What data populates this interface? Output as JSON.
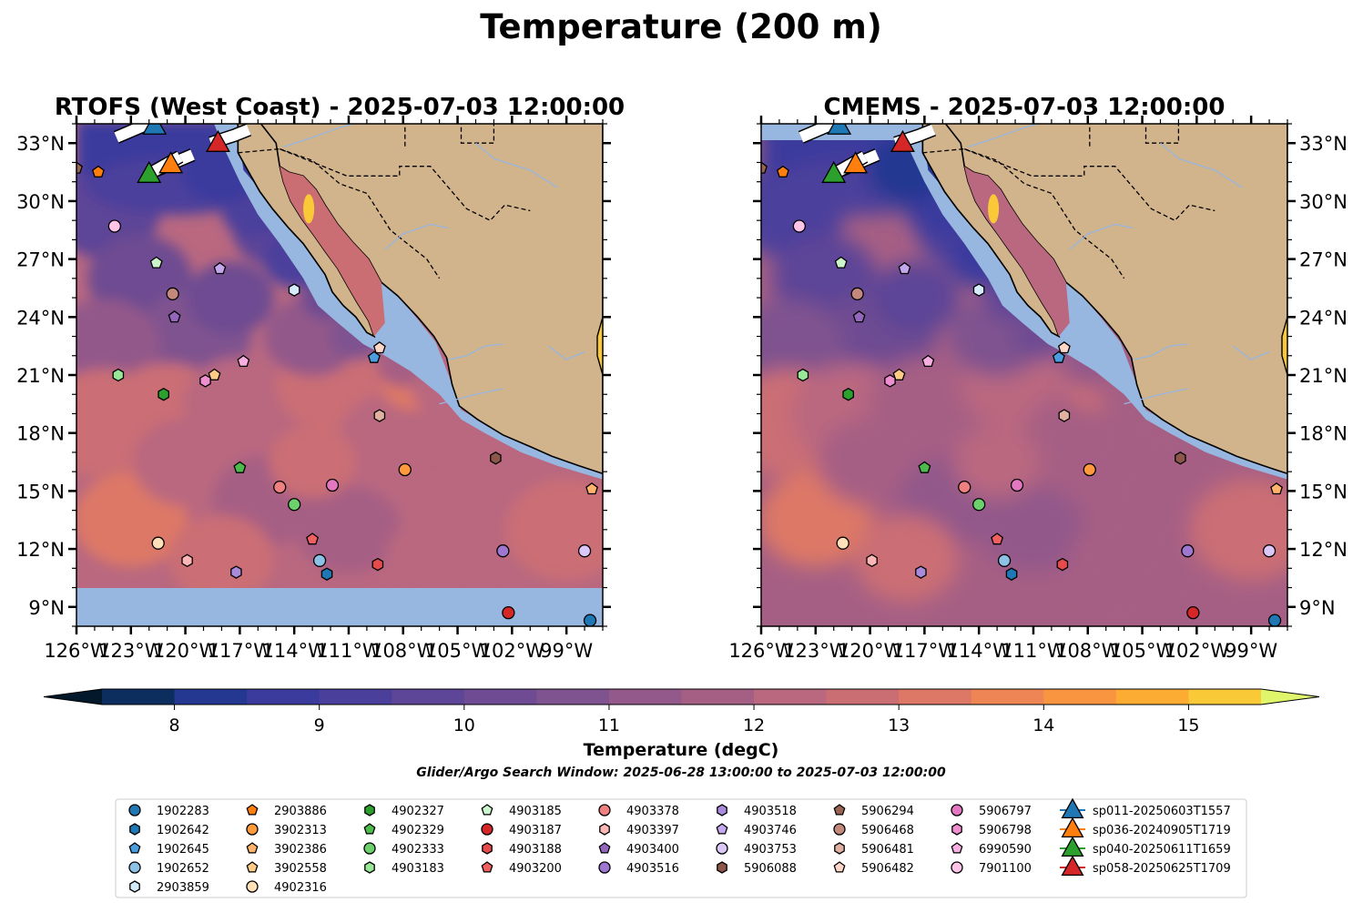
{
  "figure": {
    "suptitle": "Temperature (200 m)",
    "search_window": "Glider/Argo Search Window: 2025-06-28 13:00:00 to 2025-07-03 12:00:00"
  },
  "colors": {
    "land": "#d2b48c",
    "nodata_ocean": "#97b6e0",
    "river": "#97b6e0",
    "colormap": [
      "#03192b",
      "#0c2e5e",
      "#243891",
      "#3b3b9e",
      "#4b3f9c",
      "#5d4597",
      "#6e4b92",
      "#7f538f",
      "#93598a",
      "#a65f84",
      "#b96880",
      "#cb6e74",
      "#dd7866",
      "#ee8554",
      "#f99540",
      "#fcac32",
      "#f9c937",
      "#eee455",
      "#dff56b"
    ]
  },
  "chart_data": [
    {
      "type": "heatmap",
      "title": "RTOFS (West Coast) - 2025-07-03 12:00:00",
      "model": "RTOFS",
      "xlim": [
        -126,
        -97
      ],
      "ylim": [
        8,
        34
      ],
      "x_tick_labels": [
        "126°W",
        "123°W",
        "120°W",
        "117°W",
        "114°W",
        "111°W",
        "108°W",
        "105°W",
        "102°W",
        "99°W"
      ],
      "x_ticks": [
        -126,
        -123,
        -120,
        -117,
        -114,
        -111,
        -108,
        -105,
        -102,
        -99
      ],
      "y_tick_labels": [
        "9°N",
        "12°N",
        "15°N",
        "18°N",
        "21°N",
        "24°N",
        "27°N",
        "30°N",
        "33°N"
      ],
      "y_ticks": [
        9,
        12,
        15,
        18,
        21,
        24,
        27,
        30,
        33
      ],
      "y_label_side": "left"
    },
    {
      "type": "heatmap",
      "title": "CMEMS - 2025-07-03 12:00:00",
      "model": "CMEMS",
      "xlim": [
        -126,
        -97
      ],
      "ylim": [
        8,
        34
      ],
      "x_tick_labels": [
        "126°W",
        "123°W",
        "120°W",
        "117°W",
        "114°W",
        "111°W",
        "108°W",
        "105°W",
        "102°W",
        "99°W"
      ],
      "x_ticks": [
        -126,
        -123,
        -120,
        -117,
        -114,
        -111,
        -108,
        -105,
        -102,
        -99
      ],
      "y_tick_labels": [
        "9°N",
        "12°N",
        "15°N",
        "18°N",
        "21°N",
        "24°N",
        "27°N",
        "30°N",
        "33°N"
      ],
      "y_ticks": [
        9,
        12,
        15,
        18,
        21,
        24,
        27,
        30,
        33
      ],
      "y_label_side": "right"
    }
  ],
  "colorbar": {
    "label": "Temperature (degC)",
    "min": 7.5,
    "max": 15.5,
    "step": 0.5,
    "tick_values": [
      8,
      9,
      10,
      11,
      12,
      13,
      14,
      15
    ],
    "tick_labels": [
      "8",
      "9",
      "10",
      "11",
      "12",
      "13",
      "14",
      "15"
    ]
  },
  "floats": [
    {
      "id": "1902283",
      "marker": "circle",
      "color": "#1f77b4",
      "lon": -97.7,
      "lat": 8.3
    },
    {
      "id": "1902642",
      "marker": "hexagon",
      "color": "#1f77b4",
      "lon": -112.2,
      "lat": 10.7
    },
    {
      "id": "1902645",
      "marker": "pentagon",
      "color": "#4a9ede",
      "lon": -109.6,
      "lat": 21.9
    },
    {
      "id": "1902652",
      "marker": "circle",
      "color": "#8ec1e6",
      "lon": -112.6,
      "lat": 11.4
    },
    {
      "id": "2903859",
      "marker": "hexagon",
      "color": "#d6ecfa",
      "lon": -114.0,
      "lat": 25.4
    },
    {
      "id": "2903886",
      "marker": "pentagon",
      "color": "#ff7f0e",
      "lon": -124.8,
      "lat": 31.5
    },
    {
      "id": "3902313",
      "marker": "circle",
      "color": "#ff9a3c",
      "lon": -107.9,
      "lat": 16.1
    },
    {
      "id": "3902386",
      "marker": "pentagon",
      "color": "#ffb36b",
      "lon": -97.6,
      "lat": 15.1
    },
    {
      "id": "3902558",
      "marker": "pentagon",
      "color": "#ffcc88",
      "lon": -118.4,
      "lat": 21.0
    },
    {
      "id": "4902316",
      "marker": "circle",
      "color": "#ffe0b8",
      "lon": -121.5,
      "lat": 12.3
    },
    {
      "id": "4902327",
      "marker": "hexagon",
      "color": "#2ca02c",
      "lon": -121.2,
      "lat": 20.0
    },
    {
      "id": "4902329",
      "marker": "pentagon",
      "color": "#4cbb4c",
      "lon": -117.0,
      "lat": 16.2
    },
    {
      "id": "4902333",
      "marker": "circle",
      "color": "#6cd06c",
      "lon": -114.0,
      "lat": 14.3
    },
    {
      "id": "4903183",
      "marker": "hexagon",
      "color": "#98e898",
      "lon": -123.7,
      "lat": 21.0
    },
    {
      "id": "4903185",
      "marker": "pentagon",
      "color": "#ccf5cc",
      "lon": -121.6,
      "lat": 26.8
    },
    {
      "id": "4903187",
      "marker": "circle",
      "color": "#d62728",
      "lon": -102.2,
      "lat": 8.7
    },
    {
      "id": "4903188",
      "marker": "hexagon",
      "color": "#e44b4b",
      "lon": -109.4,
      "lat": 11.2
    },
    {
      "id": "4903200",
      "marker": "pentagon",
      "color": "#f06060",
      "lon": -113.0,
      "lat": 12.5
    },
    {
      "id": "4903378",
      "marker": "circle",
      "color": "#f08080",
      "lon": -114.8,
      "lat": 15.2
    },
    {
      "id": "4903397",
      "marker": "hexagon",
      "color": "#ffb6b6",
      "lon": -119.9,
      "lat": 11.4
    },
    {
      "id": "4903400",
      "marker": "pentagon",
      "color": "#9467bd",
      "lon": -120.6,
      "lat": 24.0
    },
    {
      "id": "4903516",
      "marker": "circle",
      "color": "#9e77d0",
      "lon": -102.5,
      "lat": 11.9
    },
    {
      "id": "4903518",
      "marker": "hexagon",
      "color": "#a98adb",
      "lon": -117.2,
      "lat": 10.8
    },
    {
      "id": "4903746",
      "marker": "pentagon",
      "color": "#c4a8ee",
      "lon": -118.1,
      "lat": 26.5
    },
    {
      "id": "4903753",
      "marker": "circle",
      "color": "#dcc8f8",
      "lon": -98.0,
      "lat": 11.9
    },
    {
      "id": "5906088",
      "marker": "hexagon",
      "color": "#8c564b",
      "lon": -102.9,
      "lat": 16.7
    },
    {
      "id": "5906294",
      "marker": "pentagon",
      "color": "#9a6454",
      "lon": -126.0,
      "lat": 31.7
    },
    {
      "id": "5906468",
      "marker": "circle",
      "color": "#c4897c",
      "lon": -120.7,
      "lat": 25.2
    },
    {
      "id": "5906481",
      "marker": "hexagon",
      "color": "#e0b0a0",
      "lon": -109.3,
      "lat": 18.9
    },
    {
      "id": "5906482",
      "marker": "pentagon",
      "color": "#ffd7c8",
      "lon": -109.3,
      "lat": 22.4
    },
    {
      "id": "5906797",
      "marker": "circle",
      "color": "#e377c2",
      "lon": -111.9,
      "lat": 15.3
    },
    {
      "id": "5906798",
      "marker": "hexagon",
      "color": "#f08fd0",
      "lon": -118.9,
      "lat": 20.7
    },
    {
      "id": "6990590",
      "marker": "pentagon",
      "color": "#f8b0e0",
      "lon": -116.8,
      "lat": 21.7
    },
    {
      "id": "7901100",
      "marker": "circle",
      "color": "#ffc4e8",
      "lon": -123.9,
      "lat": 28.7
    }
  ],
  "gliders": [
    {
      "id": "sp011-20250603T1557",
      "color": "#1f77b4",
      "lon": -121.7,
      "lat": 33.9,
      "track": [
        [
          -123.8,
          33.3
        ],
        [
          -122.3,
          33.9
        ],
        [
          -121.5,
          34.2
        ]
      ]
    },
    {
      "id": "sp036-20240905T1719",
      "color": "#ff7f0e",
      "lon": -120.8,
      "lat": 31.9,
      "track": [
        [
          -121.6,
          31.6
        ],
        [
          -119.6,
          32.4
        ]
      ]
    },
    {
      "id": "sp040-20250611T1659",
      "color": "#2ca02c",
      "lon": -122.0,
      "lat": 31.4,
      "track": [
        [
          -122.0,
          31.4
        ],
        [
          -120.3,
          32.3
        ]
      ]
    },
    {
      "id": "sp058-20250625T1709",
      "color": "#d62728",
      "lon": -118.2,
      "lat": 33.0,
      "track": [
        [
          -118.6,
          33.0
        ],
        [
          -117.3,
          33.4
        ],
        [
          -116.5,
          33.7
        ]
      ]
    }
  ]
}
